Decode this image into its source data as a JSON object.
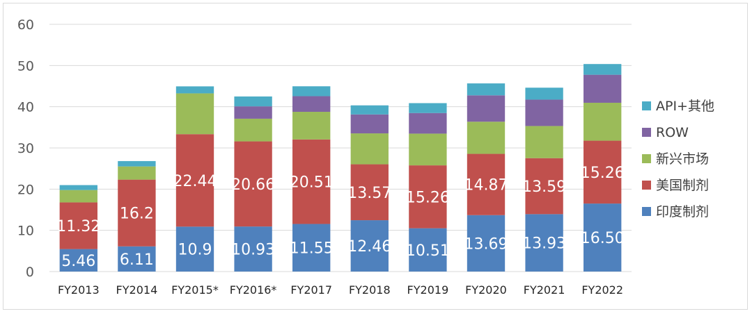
{
  "chart_data": {
    "type": "bar",
    "stacked": true,
    "title": "",
    "xlabel": "",
    "ylabel": "",
    "ylim": [
      0,
      60
    ],
    "yticks": [
      0,
      10,
      20,
      30,
      40,
      50,
      60
    ],
    "grid": true,
    "legend_position": "right",
    "categories": [
      "FY2013",
      "FY2014",
      "FY2015*",
      "FY2016*",
      "FY2017",
      "FY2018",
      "FY2019",
      "FY2020",
      "FY2021",
      "FY2022"
    ],
    "series": [
      {
        "name": "印度制剂",
        "color": "#4f81bd",
        "values": [
          5.46,
          6.11,
          10.9,
          10.93,
          11.55,
          12.46,
          10.51,
          13.69,
          13.93,
          16.5
        ],
        "labels": [
          "5.46",
          "6.11",
          "10.9",
          "10.93",
          "11.55",
          "12.46",
          "10.51",
          "13.69",
          "13.93",
          "16.50"
        ]
      },
      {
        "name": "美国制剂",
        "color": "#c0504d",
        "values": [
          11.32,
          16.2,
          22.44,
          20.66,
          20.51,
          13.57,
          15.26,
          14.87,
          13.59,
          15.26
        ],
        "labels": [
          "11.32",
          "16.2",
          "22.44",
          "20.66",
          "20.51",
          "13.57",
          "15.26",
          "14.87",
          "13.59",
          "15.26"
        ]
      },
      {
        "name": "新兴市场",
        "color": "#9bbb59",
        "values": [
          3.0,
          3.2,
          9.9,
          5.5,
          6.7,
          7.5,
          7.7,
          7.8,
          7.8,
          9.2
        ]
      },
      {
        "name": "ROW",
        "color": "#8064a2",
        "values": [
          0,
          0,
          0,
          3.0,
          3.8,
          4.6,
          5.0,
          6.4,
          6.4,
          6.8
        ]
      },
      {
        "name": "API+其他",
        "color": "#4bacc6",
        "values": [
          1.2,
          1.3,
          1.7,
          2.4,
          2.4,
          2.2,
          2.4,
          2.9,
          2.9,
          2.6
        ]
      }
    ]
  }
}
